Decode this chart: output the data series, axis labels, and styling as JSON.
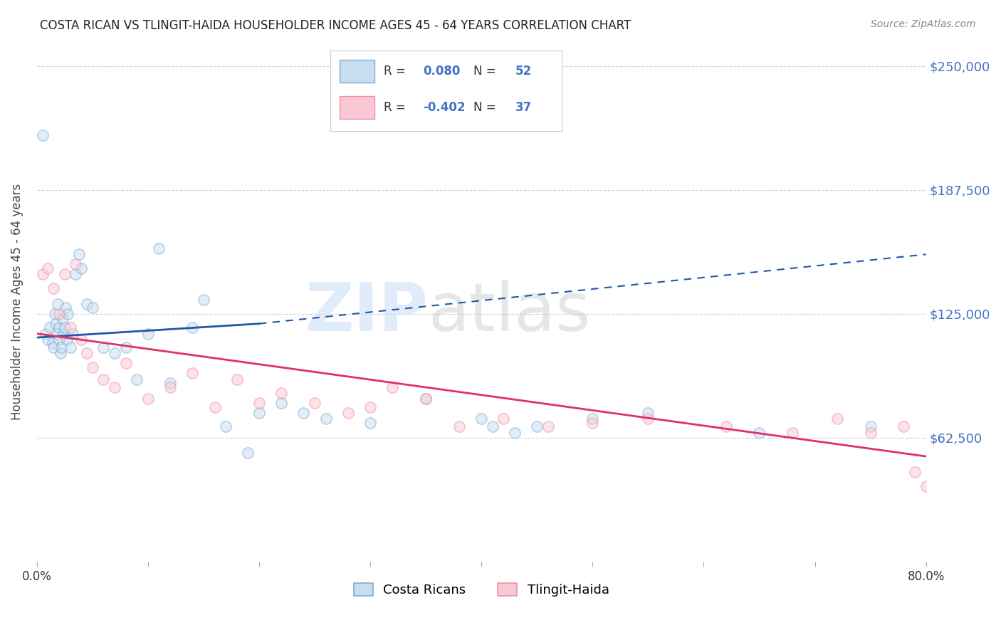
{
  "title": "COSTA RICAN VS TLINGIT-HAIDA HOUSEHOLDER INCOME AGES 45 - 64 YEARS CORRELATION CHART",
  "source": "Source: ZipAtlas.com",
  "ylabel": "Householder Income Ages 45 - 64 years",
  "ytick_labels": [
    "$62,500",
    "$125,000",
    "$187,500",
    "$250,000"
  ],
  "ytick_values": [
    62500,
    125000,
    187500,
    250000
  ],
  "grid_ytick_values": [
    62500,
    125000,
    187500,
    250000
  ],
  "xlim": [
    0.0,
    80.0
  ],
  "ylim": [
    0,
    262000
  ],
  "blue_color": "#7bafd4",
  "pink_color": "#f090a8",
  "blue_face_color": "#c8ddf0",
  "pink_face_color": "#fac8d4",
  "blue_line_color": "#2255aa",
  "pink_line_color": "#e03068",
  "blue_scatter": {
    "x": [
      0.5,
      0.8,
      1.0,
      1.2,
      1.4,
      1.5,
      1.6,
      1.7,
      1.8,
      1.9,
      2.0,
      2.0,
      2.1,
      2.2,
      2.3,
      2.4,
      2.5,
      2.6,
      2.7,
      2.8,
      3.0,
      3.2,
      3.5,
      3.8,
      4.0,
      4.5,
      5.0,
      6.0,
      7.0,
      8.0,
      9.0,
      10.0,
      11.0,
      12.0,
      14.0,
      15.0,
      17.0,
      19.0,
      20.0,
      22.0,
      24.0,
      26.0,
      30.0,
      35.0,
      40.0,
      41.0,
      43.0,
      45.0,
      50.0,
      55.0,
      65.0,
      75.0
    ],
    "y": [
      215000,
      115000,
      112000,
      118000,
      110000,
      108000,
      125000,
      120000,
      115000,
      130000,
      112000,
      118000,
      105000,
      108000,
      122000,
      115000,
      118000,
      128000,
      112000,
      125000,
      108000,
      115000,
      145000,
      155000,
      148000,
      130000,
      128000,
      108000,
      105000,
      108000,
      92000,
      115000,
      158000,
      90000,
      118000,
      132000,
      68000,
      55000,
      75000,
      80000,
      75000,
      72000,
      70000,
      82000,
      72000,
      68000,
      65000,
      68000,
      72000,
      75000,
      65000,
      68000
    ]
  },
  "pink_scatter": {
    "x": [
      0.5,
      1.0,
      1.5,
      2.0,
      2.5,
      3.0,
      3.5,
      4.0,
      4.5,
      5.0,
      6.0,
      7.0,
      8.0,
      10.0,
      12.0,
      14.0,
      16.0,
      18.0,
      20.0,
      22.0,
      25.0,
      28.0,
      30.0,
      32.0,
      35.0,
      38.0,
      42.0,
      46.0,
      50.0,
      55.0,
      62.0,
      68.0,
      72.0,
      75.0,
      78.0,
      79.0,
      80.0
    ],
    "y": [
      145000,
      148000,
      138000,
      125000,
      145000,
      118000,
      150000,
      112000,
      105000,
      98000,
      92000,
      88000,
      100000,
      82000,
      88000,
      95000,
      78000,
      92000,
      80000,
      85000,
      80000,
      75000,
      78000,
      88000,
      82000,
      68000,
      72000,
      68000,
      70000,
      72000,
      68000,
      65000,
      72000,
      65000,
      68000,
      45000,
      38000
    ]
  },
  "blue_line_solid": {
    "x0": 0.0,
    "x1": 20.0,
    "y0": 113000,
    "y1": 120000
  },
  "blue_line_dashed": {
    "x0": 20.0,
    "x1": 80.0,
    "y0": 120000,
    "y1": 155000
  },
  "pink_line": {
    "x0": 0.0,
    "x1": 80.0,
    "y0": 115000,
    "y1": 53000
  },
  "grid_color": "#d0d0d8",
  "background_color": "#ffffff",
  "title_color": "#222222",
  "axis_label_color": "#444444",
  "ytick_color": "#4472c4",
  "source_color": "#888888",
  "marker_size": 120,
  "marker_alpha": 0.5,
  "marker_linewidth": 1.2
}
